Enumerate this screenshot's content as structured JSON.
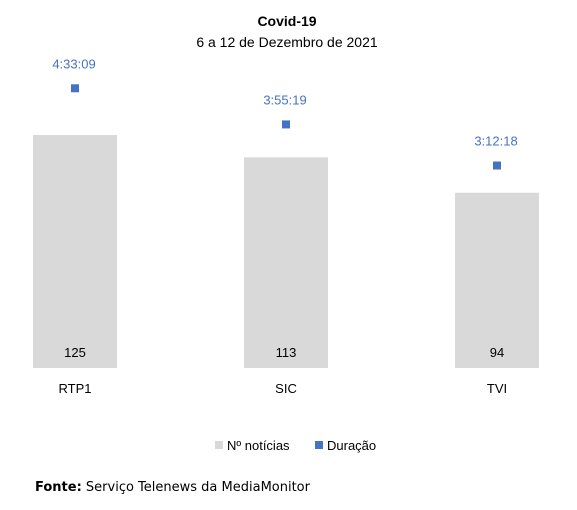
{
  "chart_data": {
    "type": "bar",
    "title": "Covid-19",
    "subtitle": "6 a 12 de Dezembro de 2021",
    "categories": [
      "RTP1",
      "SIC",
      "TVI"
    ],
    "series": [
      {
        "name": "Nº notícias",
        "kind": "bar",
        "values": [
          125,
          113,
          94
        ],
        "color": "#d9d9d9"
      },
      {
        "name": "Duração",
        "kind": "marker",
        "values": [
          "4:33:09",
          "3:55:19",
          "3:12:18"
        ],
        "color": "#4472c4"
      }
    ],
    "legend_position": "bottom",
    "grid": false
  },
  "source": {
    "label": "Fonte",
    "text": "Serviço Telenews da MediaMonitor"
  }
}
